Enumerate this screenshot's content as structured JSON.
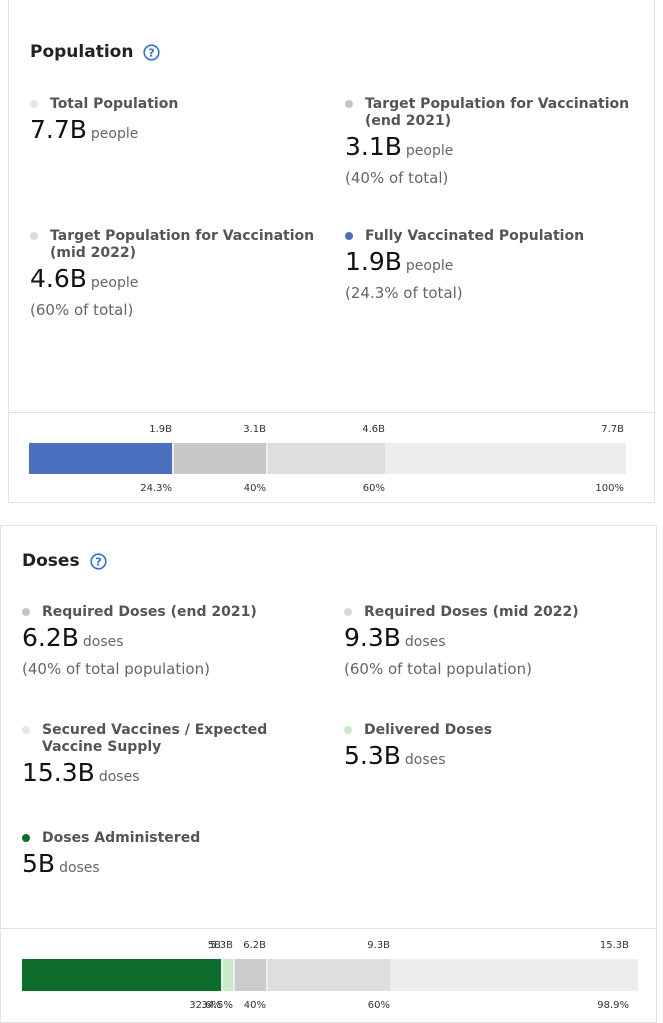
{
  "population": {
    "title": "Population",
    "help_icon": "help-circle-icon",
    "stats": [
      {
        "label": "Total Population",
        "value": "7.7B",
        "unit": "people",
        "sub": "",
        "dot": "#e6e6e6"
      },
      {
        "label": "Target Population for Vaccination (end 2021)",
        "value": "3.1B",
        "unit": "people",
        "sub": "(40% of total)",
        "dot": "#c4c4c4"
      },
      {
        "label": "Target Population for Vaccination (mid 2022)",
        "value": "4.6B",
        "unit": "people",
        "sub": "(60% of total)",
        "dot": "#dadada"
      },
      {
        "label": "Fully Vaccinated Population",
        "value": "1.9B",
        "unit": "people",
        "sub": "(24.3% of total)",
        "dot": "#4a6fbf"
      }
    ],
    "bar": {
      "top_labels": [
        "1.9B",
        "3.1B",
        "4.6B",
        "7.7B"
      ],
      "bottom_labels": [
        "24.3%",
        "40%",
        "60%",
        "100%"
      ],
      "fractions": [
        0.243,
        0.4,
        0.6,
        1.0
      ],
      "colors": [
        "#4a6fbf",
        "#c8c8c8",
        "#dedede",
        "#ededed"
      ]
    }
  },
  "doses": {
    "title": "Doses",
    "help_icon": "help-circle-icon",
    "stats": [
      {
        "label": "Required Doses (end 2021)",
        "value": "6.2B",
        "unit": "doses",
        "sub": "(40% of total population)",
        "dot": "#c4c4c4"
      },
      {
        "label": "Required Doses (mid 2022)",
        "value": "9.3B",
        "unit": "doses",
        "sub": "(60% of total population)",
        "dot": "#dadada"
      },
      {
        "label": "Secured Vaccines / Expected Vaccine Supply",
        "value": "15.3B",
        "unit": "doses",
        "sub": "",
        "dot": "#e6e6e6"
      },
      {
        "label": "Delivered Doses",
        "value": "5.3B",
        "unit": "doses",
        "sub": "",
        "dot": "#c8ecc8"
      },
      {
        "label": "Doses Administered",
        "value": "5B",
        "unit": "doses",
        "sub": "",
        "dot": "#0c6e2a"
      }
    ],
    "bar": {
      "top_labels": [
        "5B",
        "5.3B",
        "6.2B",
        "9.3B",
        "15.3B"
      ],
      "bottom_labels": [
        "32.6%",
        "34.5%",
        "40%",
        "60%",
        "98.9%"
      ],
      "fractions": [
        0.326,
        0.345,
        0.4,
        0.6,
        0.989
      ],
      "colors": [
        "#0c6e2a",
        "#c8ecc8",
        "#cbcbcb",
        "#dedede",
        "#ededed"
      ]
    }
  }
}
